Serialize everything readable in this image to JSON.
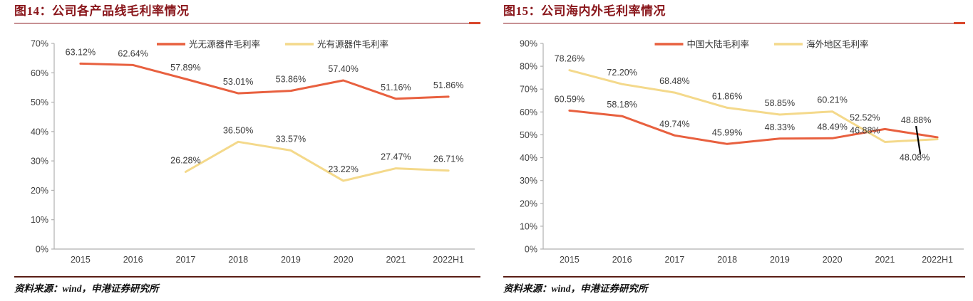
{
  "page": {
    "background": "#ffffff"
  },
  "colors": {
    "title": "#8a171c",
    "title_rule": "#8a171c",
    "rule_accent": "#d9472b",
    "footer_rule": "#591d15",
    "axis": "#b0b0b0",
    "tick_text": "#404040",
    "label_text": "#3a3a3a",
    "legend_text": "#333333",
    "footer_text": "#111111",
    "leader": "#000000",
    "red_series": "#e8603f",
    "yellow_series": "#f4d98b"
  },
  "panels": [
    {
      "title": "图14：公司各产品线毛利率情况",
      "source": "资料来源：wind，申港证券研究所"
    },
    {
      "title": "图15：公司海内外毛利率情况",
      "source": "资料来源：wind，申港证券研究所"
    }
  ],
  "chart_data": [
    {
      "type": "line",
      "title": "图14：公司各产品线毛利率情况",
      "categories": [
        "2015",
        "2016",
        "2017",
        "2018",
        "2019",
        "2020",
        "2021",
        "2022H1"
      ],
      "ylim": [
        0,
        70
      ],
      "yticks": [
        0,
        10,
        20,
        30,
        40,
        50,
        60,
        70
      ],
      "ytick_suffix": "%",
      "grid": false,
      "legend_position": "top",
      "series": [
        {
          "name": "光无源器件毛利率",
          "color": "#e8603f",
          "values": [
            63.12,
            62.64,
            57.89,
            53.01,
            53.86,
            57.4,
            51.16,
            51.86
          ]
        },
        {
          "name": "光有源器件毛利率",
          "color": "#f4d98b",
          "values": [
            null,
            null,
            26.28,
            36.5,
            33.57,
            23.22,
            27.47,
            26.71
          ]
        }
      ]
    },
    {
      "type": "line",
      "title": "图15：公司海内外毛利率情况",
      "categories": [
        "2015",
        "2016",
        "2017",
        "2018",
        "2019",
        "2020",
        "2021",
        "2022H1"
      ],
      "ylim": [
        0,
        90
      ],
      "yticks": [
        0,
        10,
        20,
        30,
        40,
        50,
        60,
        70,
        80,
        90
      ],
      "ytick_suffix": "%",
      "grid": false,
      "legend_position": "top",
      "end_leader_line": true,
      "series": [
        {
          "name": "中国大陆毛利率",
          "color": "#e8603f",
          "values": [
            60.59,
            58.18,
            49.74,
            45.99,
            48.33,
            48.49,
            52.52,
            48.88
          ],
          "label_offsets": {
            "6": [
              -28,
              -12
            ],
            "7": [
              -30,
              -20
            ]
          }
        },
        {
          "name": "海外地区毛利率",
          "color": "#f4d98b",
          "values": [
            78.26,
            72.2,
            68.48,
            61.86,
            58.85,
            60.21,
            46.88,
            48.08
          ],
          "label_offsets": {
            "6": [
              -28,
              -12
            ],
            "7": [
              -32,
              30
            ]
          }
        }
      ]
    }
  ]
}
